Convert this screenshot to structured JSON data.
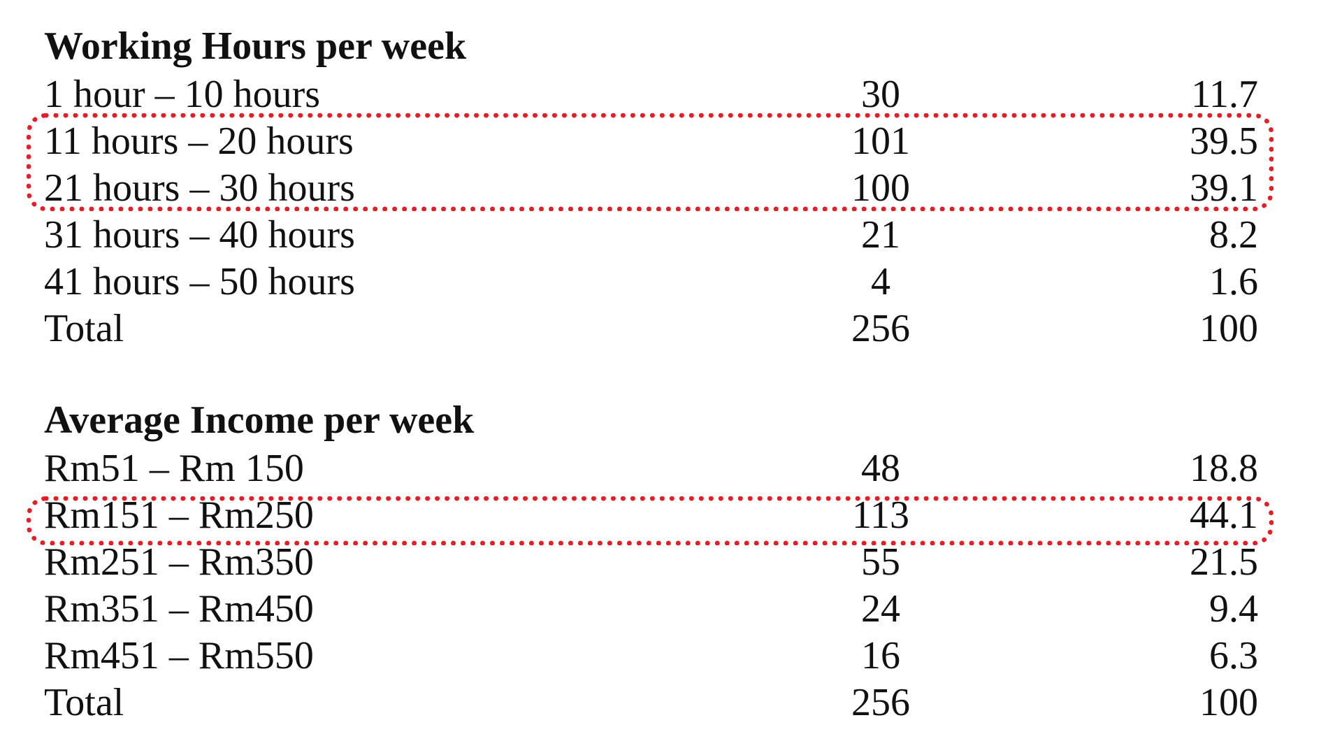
{
  "highlight_color": "#e41e25",
  "working_hours": {
    "title": "Working Hours per week",
    "rows": [
      {
        "label": "1 hour – 10 hours",
        "count": "30",
        "percent": "11.7"
      },
      {
        "label": "11 hours – 20 hours",
        "count": "101",
        "percent": "39.5"
      },
      {
        "label": "21 hours – 30 hours",
        "count": "100",
        "percent": "39.1"
      },
      {
        "label": "31 hours – 40 hours",
        "count": "21",
        "percent": "8.2"
      },
      {
        "label": "41 hours – 50 hours",
        "count": "4",
        "percent": "1.6"
      },
      {
        "label": "Total",
        "count": "256",
        "percent": "100"
      }
    ],
    "highlighted_rows": [
      "11 hours – 20 hours",
      "21 hours – 30 hours"
    ]
  },
  "income": {
    "title": "Average Income per week",
    "rows": [
      {
        "label": "Rm51 – Rm 150",
        "count": "48",
        "percent": "18.8"
      },
      {
        "label": "Rm151 – Rm250",
        "count": "113",
        "percent": "44.1"
      },
      {
        "label": "Rm251 – Rm350",
        "count": "55",
        "percent": "21.5"
      },
      {
        "label": "Rm351 – Rm450",
        "count": "24",
        "percent": "9.4"
      },
      {
        "label": "Rm451 – Rm550",
        "count": "16",
        "percent": "6.3"
      },
      {
        "label": "Total",
        "count": "256",
        "percent": "100"
      }
    ],
    "highlighted_rows": [
      "Rm151 – Rm250"
    ]
  }
}
